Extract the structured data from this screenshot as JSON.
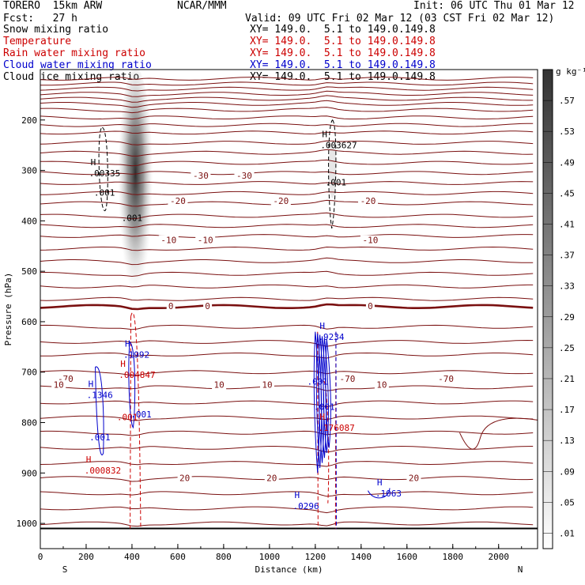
{
  "header": {
    "model": "TORERO  15km ARW",
    "center": "NCAR/MMM",
    "init": "Init: 06 UTC Thu 01 Mar 12",
    "fcst": "Fcst:   27 h",
    "valid": "Valid: 09 UTC Fri 02 Mar 12 (03 CST Fri 02 Mar 12)",
    "fields": [
      {
        "name": "Snow mixing ratio",
        "xy": "",
        "color": "#000000"
      },
      {
        "name": "Temperature",
        "xy": "XY= 149.0.  5.1 to 149.0.149.8",
        "color": "#cc0000"
      },
      {
        "name": "Rain water mixing ratio",
        "xy": "XY= 149.0.  5.1 to 149.0.149.8",
        "color": "#cc0000"
      },
      {
        "name": "Cloud water mixing ratio",
        "xy": "XY= 149.0.  5.1 to 149.0.149.8",
        "color": "#0000cc"
      },
      {
        "name": "Cloud ice mixing ratio",
        "xy": "XY= 149.0.  5.1 to 149.0.149.8",
        "color": "#000000"
      }
    ],
    "first_xy": "XY= 149.0.  5.1 to 149.0.149.8",
    "first_xy_color": "#000000"
  },
  "chart_data": {
    "type": "contour-cross-section",
    "xlabel": "Distance (km)",
    "ylabel": "Pressure (hPa)",
    "xlim": [
      0,
      2170
    ],
    "ylim": [
      1050,
      100
    ],
    "x_ticks": [
      0,
      200,
      400,
      600,
      800,
      1000,
      1200,
      1400,
      1600,
      1800,
      2000
    ],
    "y_ticks": [
      200,
      300,
      400,
      500,
      600,
      700,
      800,
      900,
      1000
    ],
    "left_end": "S",
    "right_end": "N",
    "colorbar": {
      "unit": "g kg⁻¹",
      "ticks": [
        ".01",
        ".05",
        ".09",
        ".13",
        ".17",
        ".21",
        ".25",
        ".29",
        ".33",
        ".37",
        ".41",
        ".45",
        ".49",
        ".53",
        ".57"
      ]
    },
    "temperature_label_rows": [
      {
        "x": [
          110,
          1340,
          1770
        ],
        "p": 713,
        "text": [
          "-70",
          "-70",
          "-70"
        ]
      },
      {
        "x": [
          700,
          890
        ],
        "p": 310,
        "text": [
          "-30",
          "-30"
        ]
      },
      {
        "x": [
          600,
          1050,
          1430
        ],
        "p": 360,
        "text": [
          "-20",
          "-20",
          "-20"
        ]
      },
      {
        "x": [
          560,
          720,
          1440
        ],
        "p": 438,
        "text": [
          "-10",
          "-10",
          "-10"
        ]
      },
      {
        "x": [
          570,
          730,
          1440
        ],
        "p": 569,
        "text": [
          "0",
          "0",
          "0"
        ]
      },
      {
        "x": [
          80,
          780,
          990,
          1490
        ],
        "p": 725,
        "text": [
          "10",
          "10",
          "10",
          "10"
        ]
      },
      {
        "x": [
          630,
          1010,
          1630
        ],
        "p": 910,
        "text": [
          "20",
          "20",
          "20"
        ]
      }
    ],
    "maxima": [
      {
        "field": "ice",
        "x": 240,
        "p": 305,
        "text": ".00335"
      },
      {
        "field": "ice",
        "x": 1250,
        "p": 250,
        "text": ".003627"
      },
      {
        "field": "cloud_water",
        "x": 390,
        "p": 665,
        "text": ".1992"
      },
      {
        "field": "rain",
        "x": 370,
        "p": 705,
        "text": ".004847"
      },
      {
        "field": "cloud_water",
        "x": 230,
        "p": 745,
        "text": ".1346"
      },
      {
        "field": "cloud_water",
        "x": 1240,
        "p": 630,
        "text": ".9234"
      },
      {
        "field": "rain",
        "x": 1240,
        "p": 810,
        "text": ".176087"
      },
      {
        "field": "rain",
        "x": 220,
        "p": 895,
        "text": ".000832"
      },
      {
        "field": "cloud_water",
        "x": 1130,
        "p": 965,
        "text": ".0296"
      },
      {
        "field": "cloud_water",
        "x": 1490,
        "p": 940,
        "text": ".1063"
      }
    ],
    "contour_labels": [
      {
        "field": "ice",
        "x": 280,
        "p": 350,
        "text": ".001"
      },
      {
        "field": "ice",
        "x": 400,
        "p": 400,
        "text": ".001"
      },
      {
        "field": "ice",
        "x": 1290,
        "p": 330,
        "text": ".001"
      },
      {
        "field": "rain",
        "x": 380,
        "p": 795,
        "text": ".001"
      },
      {
        "field": "cloud_water",
        "x": 440,
        "p": 790,
        "text": ".001"
      },
      {
        "field": "cloud_water",
        "x": 260,
        "p": 835,
        "text": ".001"
      },
      {
        "field": "cloud_water",
        "x": 1240,
        "p": 775,
        "text": ".001"
      },
      {
        "field": "cloud_water",
        "x": 1210,
        "p": 725,
        "text": ".001"
      }
    ],
    "freezing_level_label": "0"
  }
}
